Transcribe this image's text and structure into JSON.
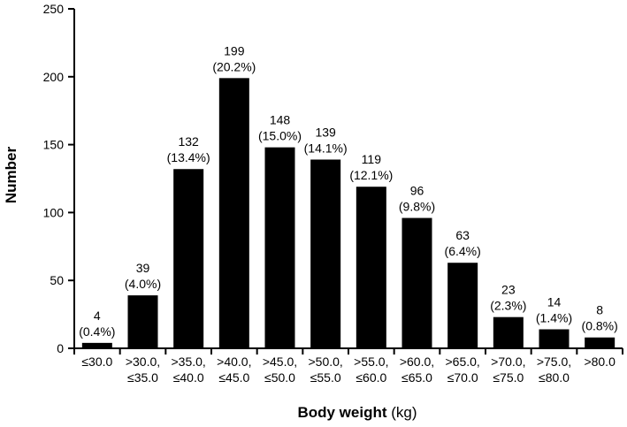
{
  "chart_data": {
    "type": "bar",
    "title": "",
    "xlabel": "Body weight",
    "xlabel_unit": "(kg)",
    "ylabel": "Number",
    "ylim": [
      0,
      250
    ],
    "yticks": [
      0,
      50,
      100,
      150,
      200,
      250
    ],
    "categories": [
      [
        "≤30.0"
      ],
      [
        ">30.0,",
        "≤35.0"
      ],
      [
        ">35.0,",
        "≤40.0"
      ],
      [
        ">40.0,",
        "≤45.0"
      ],
      [
        ">45.0,",
        "≤50.0"
      ],
      [
        ">50.0,",
        "≤55.0"
      ],
      [
        ">55.0,",
        "≤60.0"
      ],
      [
        ">60.0,",
        "≤65.0"
      ],
      [
        ">65.0,",
        "≤70.0"
      ],
      [
        ">70.0,",
        "≤75.0"
      ],
      [
        ">75.0,",
        "≤80.0"
      ],
      [
        ">80.0"
      ]
    ],
    "values": [
      4,
      39,
      132,
      199,
      148,
      139,
      119,
      96,
      63,
      23,
      14,
      8
    ],
    "percent_labels": [
      "(0.4%)",
      "(4.0%)",
      "(13.4%)",
      "(20.2%)",
      "(15.0%)",
      "(14.1%)",
      "(12.1%)",
      "(9.8%)",
      "(6.4%)",
      "(2.3%)",
      "(1.4%)",
      "(0.8%)"
    ],
    "bar_color": "#000000",
    "grid": false
  }
}
